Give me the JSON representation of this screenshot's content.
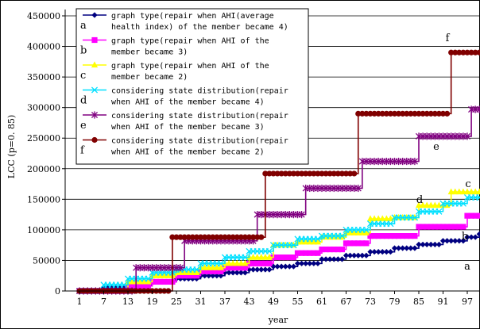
{
  "chart_data": {
    "type": "line",
    "title": "",
    "xlabel": "year",
    "ylabel": "LCC (p=0. 85)",
    "xlim": [
      1,
      101
    ],
    "ylim": [
      0,
      450000
    ],
    "x_ticks": [
      1,
      7,
      13,
      19,
      25,
      31,
      37,
      43,
      49,
      55,
      61,
      67,
      73,
      79,
      85,
      91,
      97
    ],
    "x_tick_labels": [
      "1",
      "7",
      "13",
      "19",
      "25",
      "31",
      "37",
      "43",
      "49",
      "55",
      "61",
      "67",
      "73",
      "79",
      "85",
      "91",
      "97"
    ],
    "y_ticks": [
      0,
      50000,
      100000,
      150000,
      200000,
      250000,
      300000,
      350000,
      400000,
      450000
    ],
    "y_tick_labels": [
      "0",
      "50000",
      "100000",
      "150000",
      "200000",
      "250000",
      "300000",
      "350000",
      "400000",
      "450000"
    ],
    "grid": "horizontal",
    "legend_position": "top-left",
    "series": [
      {
        "name": "graph type(repair when AHI(average health index) of the member became 4)",
        "tag": "a",
        "color": "#000080",
        "marker": "diamond",
        "steps": [
          [
            1,
            0
          ],
          [
            7,
            5000
          ],
          [
            13,
            10000
          ],
          [
            19,
            15000
          ],
          [
            25,
            20000
          ],
          [
            31,
            25000
          ],
          [
            37,
            30000
          ],
          [
            43,
            35000
          ],
          [
            49,
            40000
          ],
          [
            55,
            45000
          ],
          [
            61,
            52000
          ],
          [
            67,
            58000
          ],
          [
            73,
            64000
          ],
          [
            79,
            70000
          ],
          [
            85,
            76000
          ],
          [
            91,
            82000
          ],
          [
            97,
            88000
          ],
          [
            100,
            93000
          ]
        ]
      },
      {
        "name": "graph type(repair when AHI of the member became 3)",
        "tag": "b",
        "color": "#ff00ff",
        "marker": "square",
        "steps": [
          [
            1,
            0
          ],
          [
            13,
            8000
          ],
          [
            19,
            15000
          ],
          [
            25,
            25000
          ],
          [
            31,
            32000
          ],
          [
            37,
            38000
          ],
          [
            43,
            45000
          ],
          [
            49,
            55000
          ],
          [
            55,
            62000
          ],
          [
            61,
            68000
          ],
          [
            67,
            78000
          ],
          [
            73,
            90000
          ],
          [
            85,
            105000
          ],
          [
            97,
            123000
          ]
        ]
      },
      {
        "name": "graph type(repair when AHI of the member became 2)",
        "tag": "c",
        "color": "#ffff00",
        "marker": "triangle",
        "steps": [
          [
            1,
            0
          ],
          [
            13,
            15000
          ],
          [
            19,
            25000
          ],
          [
            25,
            30000
          ],
          [
            31,
            38000
          ],
          [
            37,
            45000
          ],
          [
            43,
            55000
          ],
          [
            49,
            75000
          ],
          [
            55,
            80000
          ],
          [
            61,
            88000
          ],
          [
            67,
            95000
          ],
          [
            73,
            118000
          ],
          [
            79,
            120000
          ],
          [
            85,
            140000
          ],
          [
            93,
            162000
          ]
        ]
      },
      {
        "name": "considering state distribution(repair when AHI of the member became 4)",
        "tag": "d",
        "color": "#00e0ff",
        "marker": "x",
        "steps": [
          [
            1,
            0
          ],
          [
            7,
            10000
          ],
          [
            13,
            20000
          ],
          [
            19,
            30000
          ],
          [
            25,
            35000
          ],
          [
            31,
            45000
          ],
          [
            37,
            55000
          ],
          [
            43,
            65000
          ],
          [
            49,
            75000
          ],
          [
            55,
            85000
          ],
          [
            61,
            90000
          ],
          [
            67,
            100000
          ],
          [
            73,
            110000
          ],
          [
            79,
            120000
          ],
          [
            85,
            130000
          ],
          [
            91,
            143000
          ],
          [
            97,
            153000
          ]
        ]
      },
      {
        "name": "considering state distribution(repair when AHI of the member became 3)",
        "tag": "e",
        "color": "#800080",
        "marker": "star",
        "steps": [
          [
            1,
            0
          ],
          [
            15,
            38000
          ],
          [
            27,
            82000
          ],
          [
            45,
            125000
          ],
          [
            57,
            168000
          ],
          [
            71,
            212000
          ],
          [
            85,
            253000
          ],
          [
            98,
            297000
          ]
        ]
      },
      {
        "name": "considering state distribution(repair when AHI of the member became 2)",
        "tag": "f",
        "color": "#800000",
        "marker": "circle",
        "steps": [
          [
            1,
            0
          ],
          [
            24,
            88000
          ],
          [
            47,
            192000
          ],
          [
            70,
            290000
          ],
          [
            93,
            390000
          ]
        ]
      }
    ]
  }
}
